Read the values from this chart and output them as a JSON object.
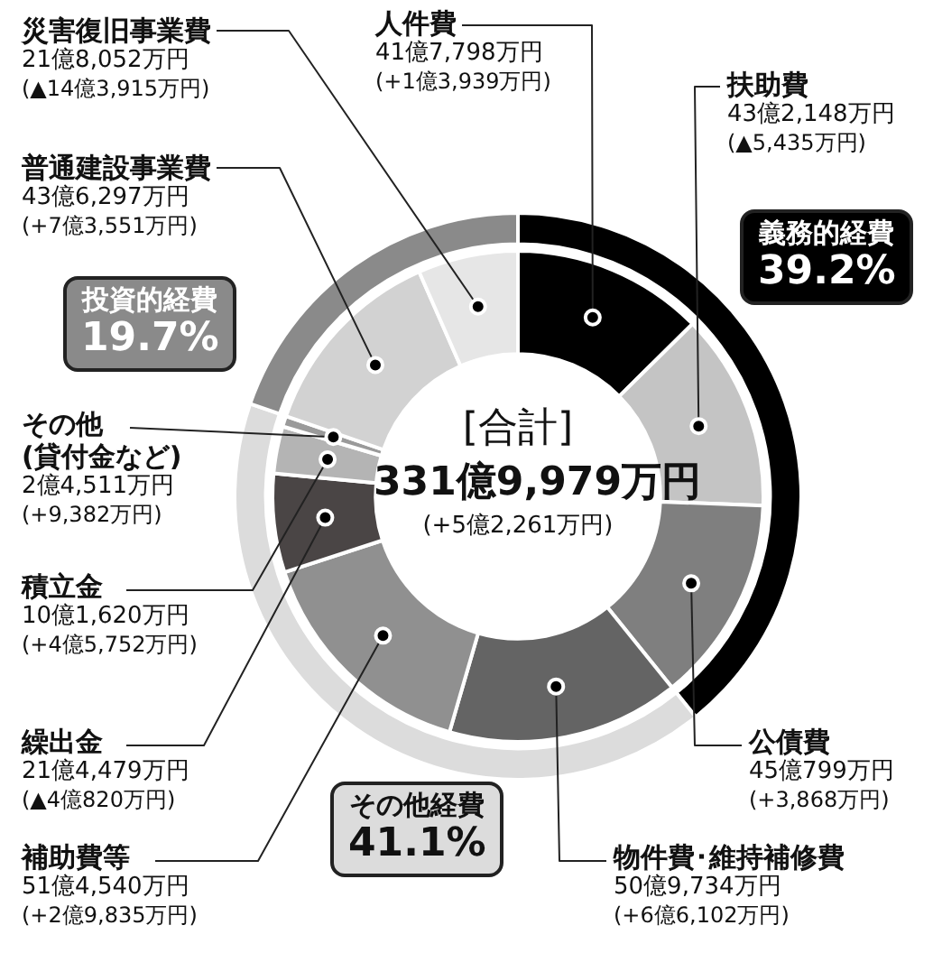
{
  "chart_data": [
    {
      "type": "donut",
      "title": "[合計]",
      "subtitle": "331億9,979万円",
      "categories": [
        "人件費",
        "扶助費",
        "公債費",
        "物件費･維持補修費",
        "補助費等",
        "繰出金",
        "積立金",
        "その他\n(貸付金など)",
        "普通建設事業費",
        "災害復旧事業費"
      ],
      "values": [
        12.6,
        13.0,
        13.6,
        15.3,
        15.5,
        6.5,
        3.1,
        0.7,
        13.1,
        6.6
      ],
      "colors": [
        "#000000",
        "#c4c4c4",
        "#7f7f7f",
        "#646464",
        "#909090",
        "#4a4545",
        "#b4b4b4",
        "#9a9a9a",
        "#d2d2d2",
        "#e6e6e6"
      ],
      "annotations": [
        "(+5億2,261万円)",
        {
          "text": "41億7,798万円",
          "x": "人件費"
        },
        {
          "text": "(+1億3,939万円)",
          "x": "人件費"
        },
        {
          "text": "43億2,148万円",
          "x": "扶助費"
        },
        {
          "text": "(▲5,435万円)",
          "x": "扶助費"
        },
        {
          "text": "45億799万円",
          "x": "公債費"
        },
        {
          "text": "(+3,868万円)",
          "x": "公債費"
        },
        {
          "text": "50億9,734万円",
          "x": "物件費･維持補修費"
        },
        {
          "text": "(+6億6,102万円)",
          "x": "物件費･維持補修費"
        },
        {
          "text": "51億4,540万円",
          "x": "補助費等"
        },
        {
          "text": "(+2億9,835万円)",
          "x": "補助費等"
        },
        {
          "text": "21億4,479万円",
          "x": "繰出金"
        },
        {
          "text": "(▲4億820万円)",
          "x": "繰出金"
        },
        {
          "text": "10億1,620万円",
          "x": "積立金"
        },
        {
          "text": "(+4億5,752万円)",
          "x": "積立金"
        },
        {
          "text": "2億4,511万円",
          "x": "その他\n(貸付金など)"
        },
        {
          "text": "(+9,382万円)",
          "x": "その他\n(貸付金など)"
        },
        {
          "text": "43億6,297万円",
          "x": "普通建設事業費"
        },
        {
          "text": "(+7億3,551万円)",
          "x": "普通建設事業費"
        },
        {
          "text": "21億8,052万円",
          "x": "災害復旧事業費"
        },
        {
          "text": "(▲14億3,915万円)",
          "x": "災害復旧事業費"
        }
      ]
    },
    {
      "type": "donut",
      "categories": [
        "義務的経費",
        "その他経費",
        "投資的経費"
      ],
      "values": [
        39.2,
        41.1,
        19.7
      ],
      "value_labels": [
        "39.2%",
        "41.1%",
        "19.7%"
      ],
      "colors": [
        "#000000",
        "#dcdcdc",
        "#8a8a8a"
      ]
    }
  ]
}
